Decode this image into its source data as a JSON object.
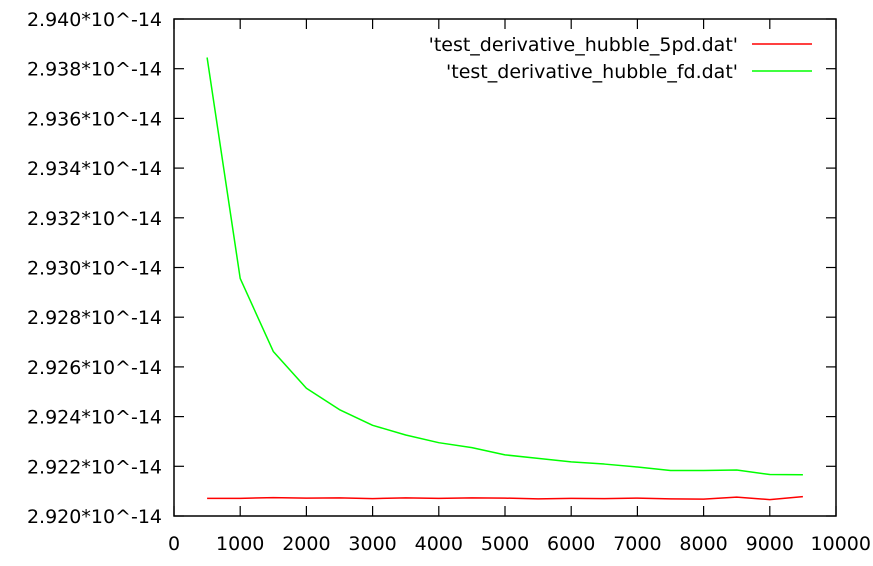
{
  "chart_data": {
    "type": "line",
    "title": "",
    "xlabel": "",
    "ylabel": "",
    "xlim": [
      0,
      10000
    ],
    "ylim": [
      2.92,
      2.94
    ],
    "x_ticks": [
      0,
      1000,
      2000,
      3000,
      4000,
      5000,
      6000,
      7000,
      8000,
      9000,
      10000
    ],
    "x_tick_labels": [
      "0",
      "1000",
      "2000",
      "3000",
      "4000",
      "5000",
      "6000",
      "7000",
      "8000",
      "9000",
      "10000"
    ],
    "y_ticks": [
      2.92,
      2.922,
      2.924,
      2.926,
      2.928,
      2.93,
      2.932,
      2.934,
      2.936,
      2.938,
      2.94
    ],
    "y_tick_labels": [
      "2.920*10^-14",
      "2.922*10^-14",
      "2.924*10^-14",
      "2.926*10^-14",
      "2.928*10^-14",
      "2.930*10^-14",
      "2.932*10^-14",
      "2.934*10^-14",
      "2.936*10^-14",
      "2.938*10^-14",
      "2.940*10^-14"
    ],
    "grid": false,
    "legend_position": "top-right",
    "series": [
      {
        "name": "'test_derivative_hubble_5pd.dat'",
        "color": "#ff0000",
        "x": [
          500,
          1000,
          1500,
          2000,
          2500,
          3000,
          3500,
          4000,
          4500,
          5000,
          5500,
          6000,
          6500,
          7000,
          7500,
          8000,
          8500,
          9000,
          9500
        ],
        "y": [
          2.92071,
          2.92071,
          2.92074,
          2.92072,
          2.92073,
          2.9207,
          2.92073,
          2.92071,
          2.92073,
          2.92072,
          2.92069,
          2.92071,
          2.9207,
          2.92072,
          2.92069,
          2.92068,
          2.92076,
          2.92066,
          2.92078
        ]
      },
      {
        "name": "'test_derivative_hubble_fd.dat'",
        "color": "#00ff00",
        "x": [
          500,
          1000,
          1500,
          2000,
          2500,
          3000,
          3500,
          4000,
          4500,
          5000,
          5500,
          6000,
          6500,
          7000,
          7500,
          8000,
          8500,
          9000,
          9500
        ],
        "y": [
          2.93845,
          2.92956,
          2.92662,
          2.92514,
          2.92428,
          2.92365,
          2.92326,
          2.92295,
          2.92275,
          2.92246,
          2.92232,
          2.92218,
          2.92209,
          2.92197,
          2.92183,
          2.92183,
          2.92185,
          2.92167,
          2.92166
        ]
      }
    ]
  }
}
